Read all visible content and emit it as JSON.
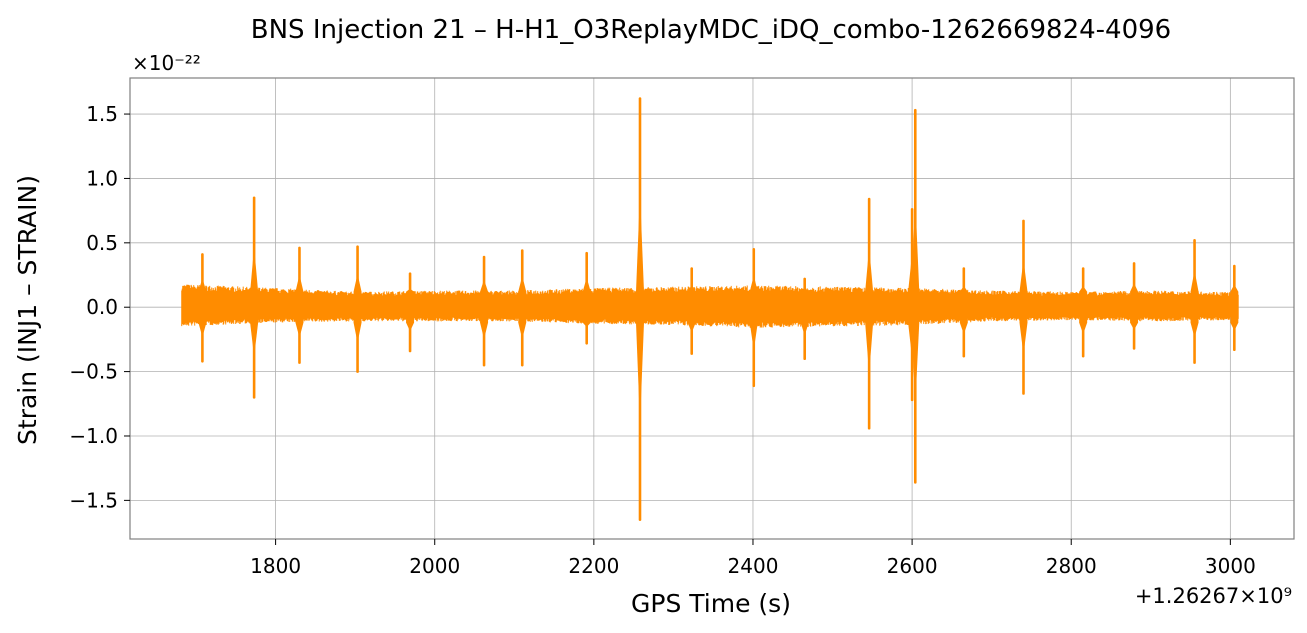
{
  "chart_data": {
    "type": "line",
    "title": "BNS Injection 21 – H-H1_O3ReplayMDC_iDQ_combo-1262669824-4096",
    "xlabel": "GPS Time (s)",
    "ylabel": "Strain (INJ1 – STRAIN)",
    "y_scale_label": "×10⁻²²",
    "x_offset_label": "+1.26267×10⁹",
    "xlim": [
      1617,
      3080
    ],
    "ylim": [
      -1.8,
      1.78
    ],
    "x_ticks": [
      1800,
      2000,
      2200,
      2400,
      2600,
      2800,
      3000
    ],
    "x_tick_labels": [
      "1800",
      "2000",
      "2200",
      "2400",
      "2600",
      "2800",
      "3000"
    ],
    "y_ticks": [
      -1.5,
      -1.0,
      -0.5,
      0.0,
      0.5,
      1.0,
      1.5
    ],
    "y_tick_labels": [
      "−1.5",
      "−1.0",
      "−0.5",
      "0.0",
      "0.5",
      "1.0",
      "1.5"
    ],
    "grid": true,
    "color": "#ff8c00",
    "series": [
      {
        "x_range": [
          1682,
          3010
        ],
        "envelope": [
          {
            "x": 1682,
            "upper": 0.18,
            "lower": -0.15
          },
          {
            "x": 1800,
            "upper": 0.15,
            "lower": -0.12
          },
          {
            "x": 1900,
            "upper": 0.12,
            "lower": -0.11
          },
          {
            "x": 2000,
            "upper": 0.13,
            "lower": -0.11
          },
          {
            "x": 2100,
            "upper": 0.13,
            "lower": -0.11
          },
          {
            "x": 2200,
            "upper": 0.15,
            "lower": -0.13
          },
          {
            "x": 2300,
            "upper": 0.16,
            "lower": -0.14
          },
          {
            "x": 2400,
            "upper": 0.17,
            "lower": -0.16
          },
          {
            "x": 2500,
            "upper": 0.16,
            "lower": -0.15
          },
          {
            "x": 2600,
            "upper": 0.15,
            "lower": -0.14
          },
          {
            "x": 2700,
            "upper": 0.13,
            "lower": -0.11
          },
          {
            "x": 2800,
            "upper": 0.12,
            "lower": -0.1
          },
          {
            "x": 2900,
            "upper": 0.13,
            "lower": -0.11
          },
          {
            "x": 3010,
            "upper": 0.12,
            "lower": -0.1
          }
        ],
        "spikes": [
          {
            "x": 1708,
            "max": 0.41,
            "min": -0.42
          },
          {
            "x": 1773,
            "max": 0.85,
            "min": -0.7
          },
          {
            "x": 1830,
            "max": 0.46,
            "min": -0.43
          },
          {
            "x": 1903,
            "max": 0.47,
            "min": -0.5
          },
          {
            "x": 1969,
            "max": 0.26,
            "min": -0.34
          },
          {
            "x": 2062,
            "max": 0.39,
            "min": -0.45
          },
          {
            "x": 2110,
            "max": 0.44,
            "min": -0.45
          },
          {
            "x": 2191,
            "max": 0.42,
            "min": -0.28
          },
          {
            "x": 2258,
            "max": 1.62,
            "min": -1.65
          },
          {
            "x": 2323,
            "max": 0.3,
            "min": -0.36
          },
          {
            "x": 2401,
            "max": 0.45,
            "min": -0.61
          },
          {
            "x": 2465,
            "max": 0.22,
            "min": -0.4
          },
          {
            "x": 2546,
            "max": 0.84,
            "min": -0.94
          },
          {
            "x": 2600,
            "max": 0.76,
            "min": -0.72
          },
          {
            "x": 2604,
            "max": 1.53,
            "min": -1.36
          },
          {
            "x": 2665,
            "max": 0.3,
            "min": -0.38
          },
          {
            "x": 2740,
            "max": 0.67,
            "min": -0.67
          },
          {
            "x": 2815,
            "max": 0.3,
            "min": -0.38
          },
          {
            "x": 2879,
            "max": 0.34,
            "min": -0.32
          },
          {
            "x": 2955,
            "max": 0.52,
            "min": -0.43
          },
          {
            "x": 3005,
            "max": 0.32,
            "min": -0.33
          }
        ]
      }
    ]
  }
}
